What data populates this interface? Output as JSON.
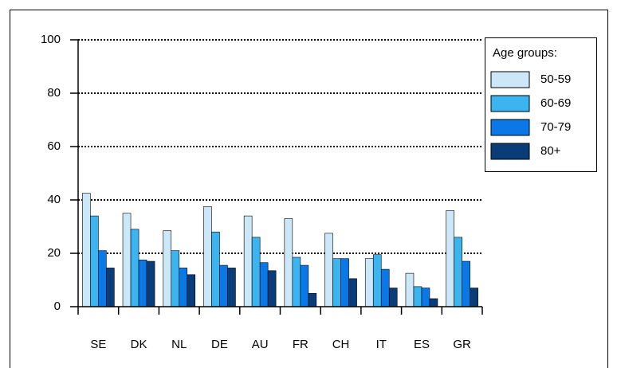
{
  "chart_data": {
    "type": "bar",
    "categories": [
      "SE",
      "DK",
      "NL",
      "DE",
      "AU",
      "FR",
      "CH",
      "IT",
      "ES",
      "GR"
    ],
    "legend_title": "Age groups:",
    "series": [
      {
        "name": "50-59",
        "color": "#cce8f8",
        "values": [
          42.5,
          35,
          28.5,
          37.5,
          34,
          33,
          27.5,
          18,
          12.5,
          36
        ]
      },
      {
        "name": "60-69",
        "color": "#3cb4f0",
        "values": [
          34,
          29,
          21,
          28,
          26,
          18.5,
          18,
          19.5,
          7.5,
          26
        ]
      },
      {
        "name": "70-79",
        "color": "#0a78e6",
        "values": [
          21,
          17.5,
          14.5,
          15.5,
          16.5,
          15.5,
          18,
          14,
          7,
          17
        ]
      },
      {
        "name": "80+",
        "color": "#0a3c78",
        "values": [
          14.5,
          17,
          12,
          14.5,
          13.5,
          5,
          10.5,
          7,
          3,
          7
        ]
      }
    ],
    "ylim": [
      0,
      100
    ],
    "yticks": [
      0,
      20,
      40,
      60,
      80,
      100
    ],
    "grid": true,
    "legend": "right"
  }
}
